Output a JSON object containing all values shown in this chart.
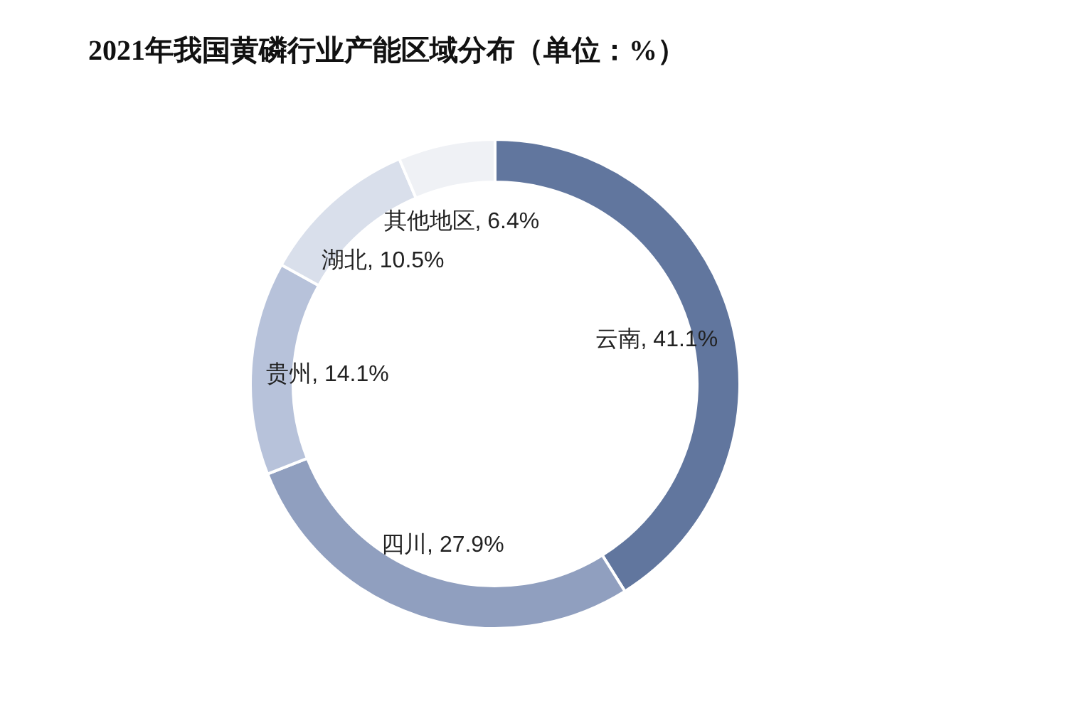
{
  "chart_data": {
    "type": "donut",
    "title": "2021年我国黄磷行业产能区域分布（单位：%）",
    "categories": [
      "云南",
      "四川",
      "贵州",
      "湖北",
      "其他地区"
    ],
    "values": [
      41.1,
      27.9,
      14.1,
      10.5,
      6.4
    ],
    "colors": [
      "#61769e",
      "#909fbf",
      "#b7c2da",
      "#d9dfeb",
      "#eff1f5"
    ],
    "value_labels": [
      ", 41.1%",
      ", 27.9%",
      ", 14.1%",
      ", 10.5%",
      ", 6.4%"
    ],
    "legend": false
  }
}
